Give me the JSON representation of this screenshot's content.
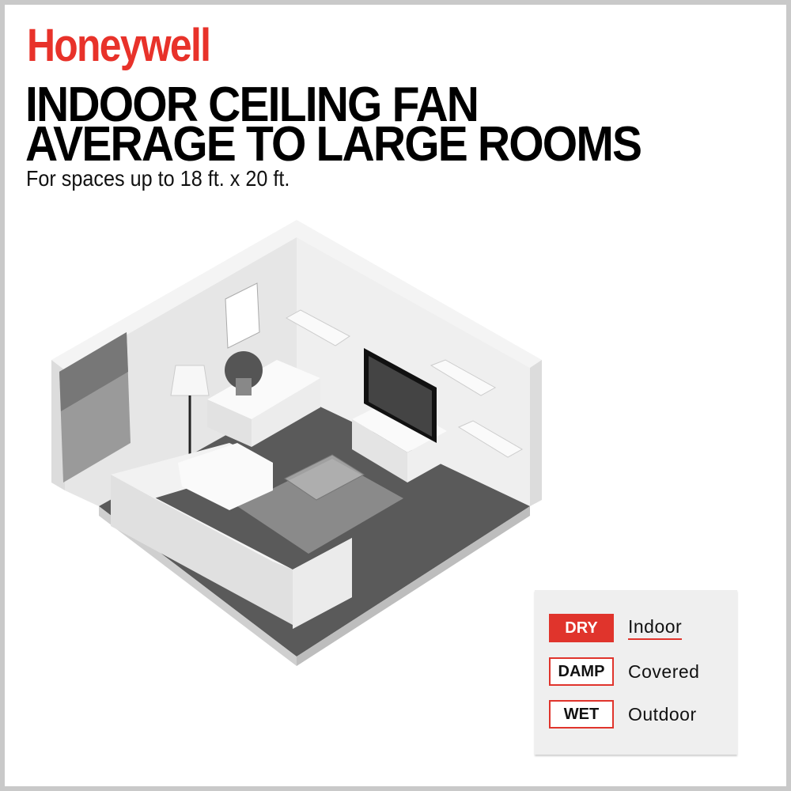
{
  "brand": {
    "logo": "Honeywell",
    "color": "#e8322a"
  },
  "headline": {
    "line1": "INDOOR CEILING FAN",
    "line2": "AVERAGE TO LARGE ROOMS"
  },
  "subtitle": "For spaces up to 18 ft. x 20 ft.",
  "illustration": "isometric-living-room",
  "rating_legend": {
    "accent": "#e0342c",
    "items": [
      {
        "badge": "DRY",
        "label": "Indoor",
        "selected": true
      },
      {
        "badge": "DAMP",
        "label": "Covered",
        "selected": false
      },
      {
        "badge": "WET",
        "label": "Outdoor",
        "selected": false
      }
    ]
  }
}
